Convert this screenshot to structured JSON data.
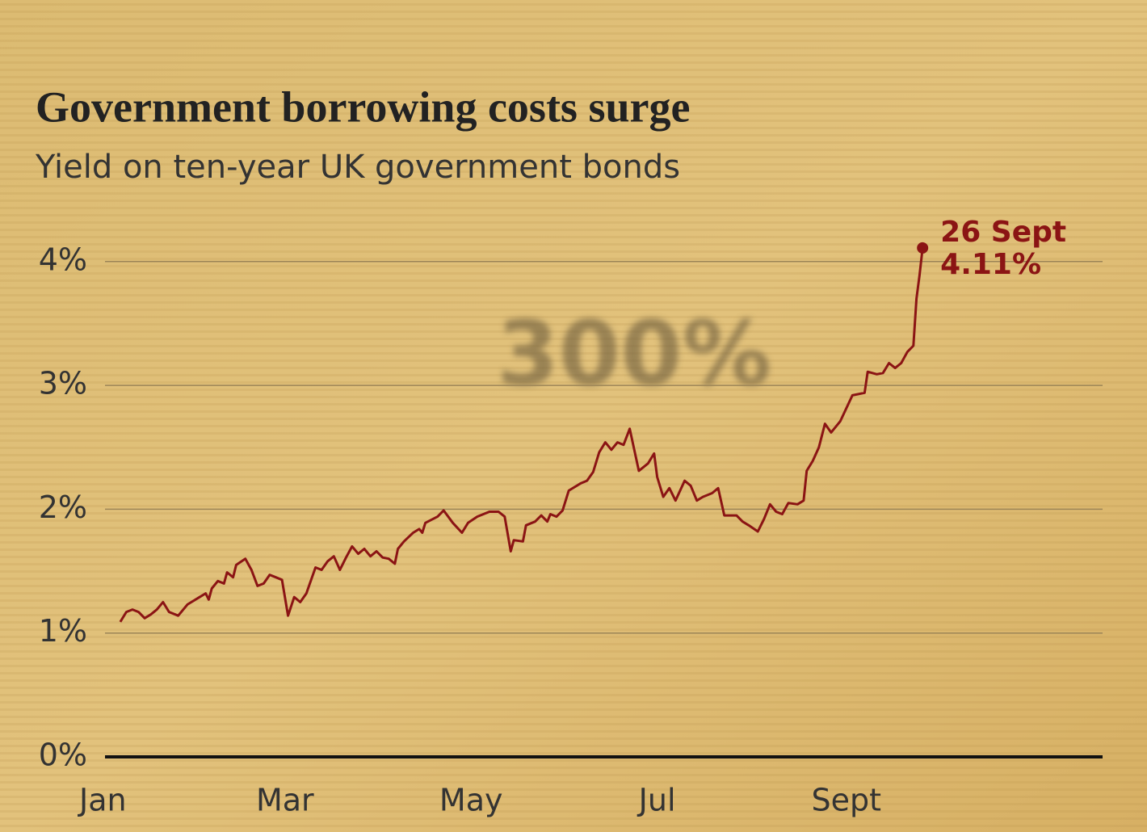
{
  "chart_data": {
    "type": "line",
    "title": "Government borrowing costs surge",
    "subtitle": "Yield on ten-year UK government bonds",
    "watermark": "300%",
    "color": "#8b1414",
    "grid": true,
    "x": [
      5,
      7,
      9,
      11,
      13,
      15,
      17,
      19,
      21,
      24,
      27,
      31,
      33,
      34,
      35,
      37,
      39,
      40,
      42,
      43,
      46,
      48,
      50,
      52,
      54,
      56,
      58,
      60,
      62,
      64,
      66,
      69,
      71,
      73,
      75,
      77,
      79,
      81,
      83,
      85,
      87,
      89,
      91,
      93,
      95,
      96,
      98,
      101,
      103,
      104,
      105,
      109,
      111,
      114,
      117,
      119,
      122,
      126,
      129,
      131,
      133,
      134,
      137,
      138,
      141,
      143,
      145,
      146,
      148,
      150,
      152,
      156,
      158,
      160,
      162,
      164,
      166,
      168,
      170,
      172,
      175,
      178,
      180,
      181,
      183,
      185,
      187,
      190,
      192,
      194,
      196,
      199,
      201,
      203,
      207,
      209,
      211,
      214,
      216,
      218,
      220,
      222,
      224,
      227,
      229,
      230,
      232,
      234,
      236,
      238,
      241,
      245,
      249,
      250,
      253,
      255,
      257,
      259,
      261,
      263,
      265,
      266,
      267,
      268
    ],
    "values": [
      1.09,
      1.17,
      1.19,
      1.17,
      1.12,
      1.15,
      1.19,
      1.25,
      1.17,
      1.14,
      1.23,
      1.29,
      1.32,
      1.27,
      1.36,
      1.42,
      1.4,
      1.49,
      1.45,
      1.55,
      1.6,
      1.51,
      1.38,
      1.4,
      1.47,
      1.45,
      1.43,
      1.14,
      1.29,
      1.25,
      1.32,
      1.53,
      1.51,
      1.58,
      1.62,
      1.51,
      1.61,
      1.7,
      1.64,
      1.68,
      1.62,
      1.66,
      1.61,
      1.6,
      1.56,
      1.68,
      1.74,
      1.81,
      1.84,
      1.81,
      1.89,
      1.94,
      1.99,
      1.89,
      1.81,
      1.89,
      1.94,
      1.98,
      1.98,
      1.94,
      1.66,
      1.75,
      1.74,
      1.87,
      1.9,
      1.95,
      1.9,
      1.96,
      1.94,
      1.99,
      2.15,
      2.21,
      2.23,
      2.3,
      2.46,
      2.54,
      2.48,
      2.54,
      2.52,
      2.65,
      2.31,
      2.37,
      2.45,
      2.26,
      2.1,
      2.17,
      2.07,
      2.23,
      2.19,
      2.07,
      2.1,
      2.13,
      2.17,
      1.95,
      1.95,
      1.9,
      1.87,
      1.82,
      1.92,
      2.04,
      1.98,
      1.96,
      2.05,
      2.04,
      2.07,
      2.31,
      2.39,
      2.5,
      2.69,
      2.62,
      2.71,
      2.92,
      2.94,
      3.11,
      3.09,
      3.1,
      3.18,
      3.14,
      3.18,
      3.27,
      3.32,
      3.7,
      3.89,
      4.11
    ],
    "annotation": {
      "label": "26 Sept",
      "value_label": "4.11%"
    },
    "xlim": [
      0,
      327
    ],
    "xticks": [
      {
        "value": 0,
        "label": "Jan"
      },
      {
        "value": 59,
        "label": "Mar"
      },
      {
        "value": 120,
        "label": "May"
      },
      {
        "value": 181,
        "label": "Jul"
      },
      {
        "value": 243,
        "label": "Sept"
      }
    ],
    "ylim": [
      0,
      4.2
    ],
    "yticks": [
      {
        "value": 0,
        "label": "0%"
      },
      {
        "value": 1,
        "label": "1%"
      },
      {
        "value": 2,
        "label": "2%"
      },
      {
        "value": 3,
        "label": "3%"
      },
      {
        "value": 4,
        "label": "4%"
      }
    ]
  }
}
